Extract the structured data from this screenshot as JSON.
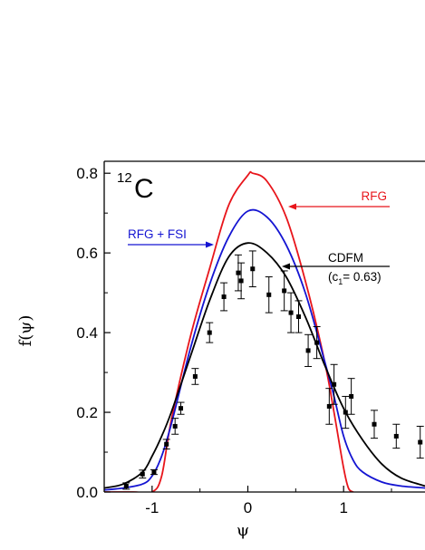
{
  "chart_data": {
    "type": "line",
    "title": "",
    "xlabel": "ψ",
    "ylabel": "f(ψ)",
    "xlim": [
      -1.5,
      1.85
    ],
    "ylim": [
      0.0,
      0.83
    ],
    "x_ticks": [
      -1,
      0,
      1
    ],
    "x_tick_labels": [
      "-1",
      "0",
      "1"
    ],
    "y_ticks": [
      0.0,
      0.2,
      0.4,
      0.6,
      0.8
    ],
    "y_tick_labels": [
      "0.0",
      "0.2",
      "0.4",
      "0.6",
      "0.8"
    ],
    "nucleus_label": {
      "mass": "12",
      "element": "C"
    },
    "colors": {
      "RFG": "#e8151b",
      "RFG + FSI": "#1414d2",
      "CDFM": "#000000",
      "data": "#000000"
    },
    "series": [
      {
        "name": "RFG",
        "kind": "curve",
        "x": [
          -1.5,
          -1.2,
          -1.0,
          -0.9,
          -0.8,
          -0.6,
          -0.4,
          -0.2,
          0.0,
          0.05,
          0.2,
          0.4,
          0.6,
          0.8,
          0.9,
          1.0,
          1.05,
          1.1
        ],
        "y": [
          0.0,
          0.0,
          0.0,
          0.04,
          0.18,
          0.39,
          0.56,
          0.72,
          0.795,
          0.8,
          0.78,
          0.69,
          0.53,
          0.33,
          0.2,
          0.06,
          0.01,
          0.0
        ]
      },
      {
        "name": "RFG + FSI",
        "kind": "curve",
        "x": [
          -1.5,
          -1.3,
          -1.1,
          -1.0,
          -0.9,
          -0.8,
          -0.6,
          -0.4,
          -0.2,
          0.0,
          0.2,
          0.4,
          0.6,
          0.8,
          0.9,
          1.0,
          1.1,
          1.2,
          1.4,
          1.6,
          1.85
        ],
        "y": [
          0.005,
          0.01,
          0.02,
          0.04,
          0.09,
          0.17,
          0.36,
          0.52,
          0.64,
          0.705,
          0.69,
          0.62,
          0.5,
          0.33,
          0.24,
          0.14,
          0.08,
          0.05,
          0.025,
          0.015,
          0.01
        ]
      },
      {
        "name": "CDFM",
        "kind": "curve",
        "annotation": {
          "line1": "CDFM",
          "line2_prefix": "(c",
          "line2_sub": "1",
          "line2_suffix": "= 0.63)"
        },
        "x": [
          -1.5,
          -1.3,
          -1.1,
          -1.0,
          -0.9,
          -0.8,
          -0.6,
          -0.4,
          -0.2,
          0.0,
          0.2,
          0.4,
          0.6,
          0.8,
          1.0,
          1.2,
          1.4,
          1.6,
          1.85
        ],
        "y": [
          0.01,
          0.02,
          0.05,
          0.09,
          0.14,
          0.2,
          0.34,
          0.48,
          0.59,
          0.625,
          0.6,
          0.54,
          0.44,
          0.32,
          0.21,
          0.13,
          0.07,
          0.035,
          0.015
        ]
      },
      {
        "name": "data",
        "kind": "points",
        "points": [
          {
            "x": -1.27,
            "y": 0.015,
            "err": 0.008
          },
          {
            "x": -1.1,
            "y": 0.045,
            "err": 0.01
          },
          {
            "x": -0.98,
            "y": 0.05,
            "err": 0.006
          },
          {
            "x": -0.85,
            "y": 0.12,
            "err": 0.012
          },
          {
            "x": -0.76,
            "y": 0.165,
            "err": 0.02
          },
          {
            "x": -0.7,
            "y": 0.21,
            "err": 0.015
          },
          {
            "x": -0.55,
            "y": 0.29,
            "err": 0.02
          },
          {
            "x": -0.4,
            "y": 0.4,
            "err": 0.025
          },
          {
            "x": -0.25,
            "y": 0.49,
            "err": 0.035
          },
          {
            "x": -0.1,
            "y": 0.55,
            "err": 0.045
          },
          {
            "x": -0.07,
            "y": 0.53,
            "err": 0.045
          },
          {
            "x": 0.05,
            "y": 0.56,
            "err": 0.045
          },
          {
            "x": 0.22,
            "y": 0.495,
            "err": 0.045
          },
          {
            "x": 0.38,
            "y": 0.505,
            "err": 0.05
          },
          {
            "x": 0.45,
            "y": 0.45,
            "err": 0.05
          },
          {
            "x": 0.53,
            "y": 0.44,
            "err": 0.04
          },
          {
            "x": 0.63,
            "y": 0.355,
            "err": 0.04
          },
          {
            "x": 0.72,
            "y": 0.375,
            "err": 0.04
          },
          {
            "x": 0.85,
            "y": 0.215,
            "err": 0.045
          },
          {
            "x": 0.9,
            "y": 0.27,
            "err": 0.05
          },
          {
            "x": 1.02,
            "y": 0.2,
            "err": 0.04
          },
          {
            "x": 1.08,
            "y": 0.24,
            "err": 0.045
          },
          {
            "x": 1.32,
            "y": 0.17,
            "err": 0.035
          },
          {
            "x": 1.55,
            "y": 0.14,
            "err": 0.03
          },
          {
            "x": 1.8,
            "y": 0.125,
            "err": 0.04
          }
        ]
      }
    ]
  }
}
